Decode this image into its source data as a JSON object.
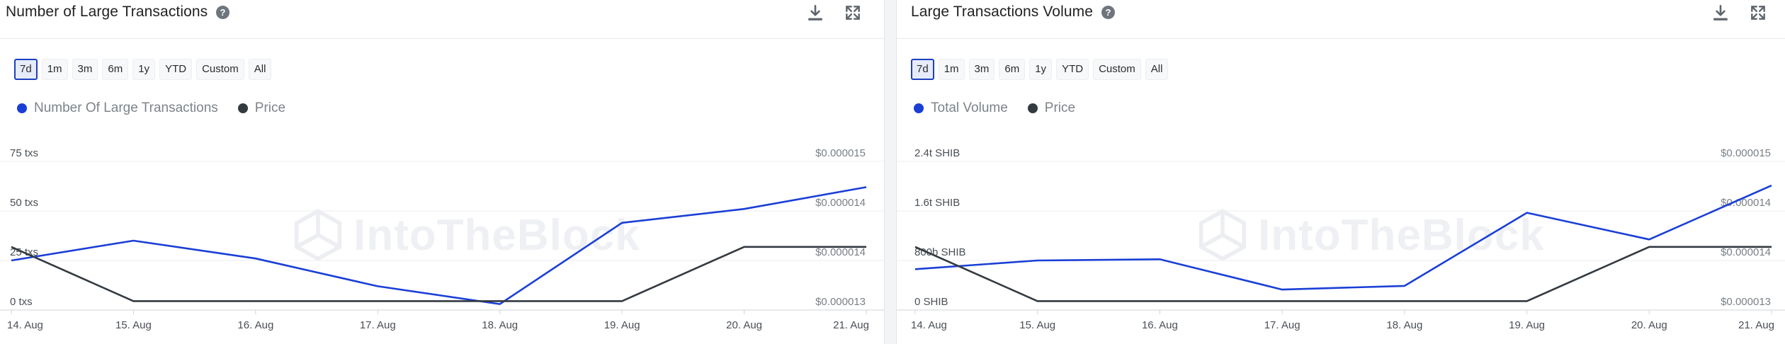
{
  "colors": {
    "primary_series": "#1a3fd6",
    "price_series": "#333a40",
    "grid": "#eceef1",
    "active_range": "#1e3fbf"
  },
  "icons": {
    "help": "help-circle-icon",
    "download": "download-icon",
    "expand": "expand-icon"
  },
  "watermark": "IntoTheBlock",
  "charts": [
    {
      "title": "Number of Large Transactions",
      "help_glyph": "?",
      "range_buttons": [
        "7d",
        "1m",
        "3m",
        "6m",
        "1y",
        "YTD",
        "Custom",
        "All"
      ],
      "active_range": "7d",
      "legend": [
        "Number Of Large Transactions",
        "Price"
      ],
      "x_ticks": [
        "14. Aug",
        "15. Aug",
        "16. Aug",
        "17. Aug",
        "18. Aug",
        "19. Aug",
        "20. Aug",
        "21. Aug"
      ],
      "left_ticks": [
        "0 txs",
        "25 txs",
        "50 txs",
        "75 txs"
      ],
      "right_ticks": [
        "$0.000013",
        "$0.000014",
        "$0.000014",
        "$0.000015"
      ]
    },
    {
      "title": "Large Transactions Volume",
      "help_glyph": "?",
      "range_buttons": [
        "7d",
        "1m",
        "3m",
        "6m",
        "1y",
        "YTD",
        "Custom",
        "All"
      ],
      "active_range": "7d",
      "legend": [
        "Total Volume",
        "Price"
      ],
      "x_ticks": [
        "14. Aug",
        "15. Aug",
        "16. Aug",
        "17. Aug",
        "18. Aug",
        "19. Aug",
        "20. Aug",
        "21. Aug"
      ],
      "left_ticks": [
        "0 SHIB",
        "800b SHIB",
        "1.6t SHIB",
        "2.4t SHIB"
      ],
      "right_ticks": [
        "$0.000013",
        "$0.000014",
        "$0.000014",
        "$0.000015"
      ]
    }
  ],
  "chart_data": [
    {
      "type": "line",
      "title": "Number of Large Transactions",
      "x": [
        "14. Aug",
        "15. Aug",
        "16. Aug",
        "17. Aug",
        "18. Aug",
        "19. Aug",
        "20. Aug",
        "21. Aug"
      ],
      "y_left_range": [
        0,
        75
      ],
      "y_right_range": [
        1.3e-05,
        1.5e-05
      ],
      "series": [
        {
          "name": "Number Of Large Transactions",
          "axis": "left",
          "values": [
            25,
            35,
            26,
            12,
            3,
            44,
            51,
            62
          ]
        },
        {
          "name": "Price",
          "axis": "right",
          "values": [
            1.385e-05,
            1.312e-05,
            1.312e-05,
            1.312e-05,
            1.312e-05,
            1.312e-05,
            1.385e-05,
            1.385e-05
          ]
        }
      ],
      "grid": true,
      "legend_position": "top-left"
    },
    {
      "type": "line",
      "title": "Large Transactions Volume",
      "x": [
        "14. Aug",
        "15. Aug",
        "16. Aug",
        "17. Aug",
        "18. Aug",
        "19. Aug",
        "20. Aug",
        "21. Aug"
      ],
      "y_left_range": [
        0,
        2400
      ],
      "y_left_unit": "billion SHIB",
      "y_right_range": [
        1.3e-05,
        1.5e-05
      ],
      "series": [
        {
          "name": "Total Volume",
          "axis": "left",
          "values": [
            660,
            800,
            820,
            330,
            390,
            1570,
            1140,
            2010
          ]
        },
        {
          "name": "Price",
          "axis": "right",
          "values": [
            1.385e-05,
            1.312e-05,
            1.312e-05,
            1.312e-05,
            1.312e-05,
            1.312e-05,
            1.385e-05,
            1.385e-05
          ]
        }
      ],
      "grid": true,
      "legend_position": "top-left"
    }
  ]
}
